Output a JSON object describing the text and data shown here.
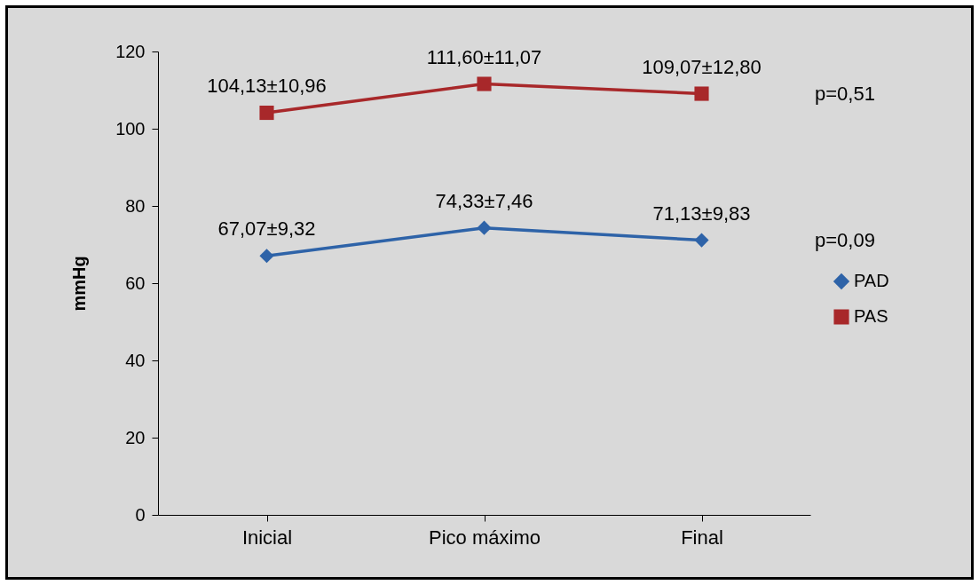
{
  "chart_data": {
    "type": "line",
    "ylabel": "mmHg",
    "categories": [
      "Inicial",
      "Pico máximo",
      "Final"
    ],
    "series": [
      {
        "name": "PAD",
        "color": "#2e63a8",
        "marker": "diamond",
        "values": [
          67.07,
          74.33,
          71.13
        ],
        "value_labels": [
          "67,07±9,32",
          "74,33±7,46",
          "71,13±9,83"
        ]
      },
      {
        "name": "PAS",
        "color": "#a8282a",
        "marker": "square",
        "values": [
          104.13,
          111.6,
          109.07
        ],
        "value_labels": [
          "104,13±10,96",
          "111,60±11,07",
          "109,07±12,80"
        ]
      }
    ],
    "ylim": [
      0,
      120
    ],
    "yticks": [
      0,
      20,
      40,
      60,
      80,
      100,
      120
    ],
    "grid": false,
    "legend": "right",
    "annotations": [
      "p=0,51",
      "p=0,09"
    ]
  }
}
